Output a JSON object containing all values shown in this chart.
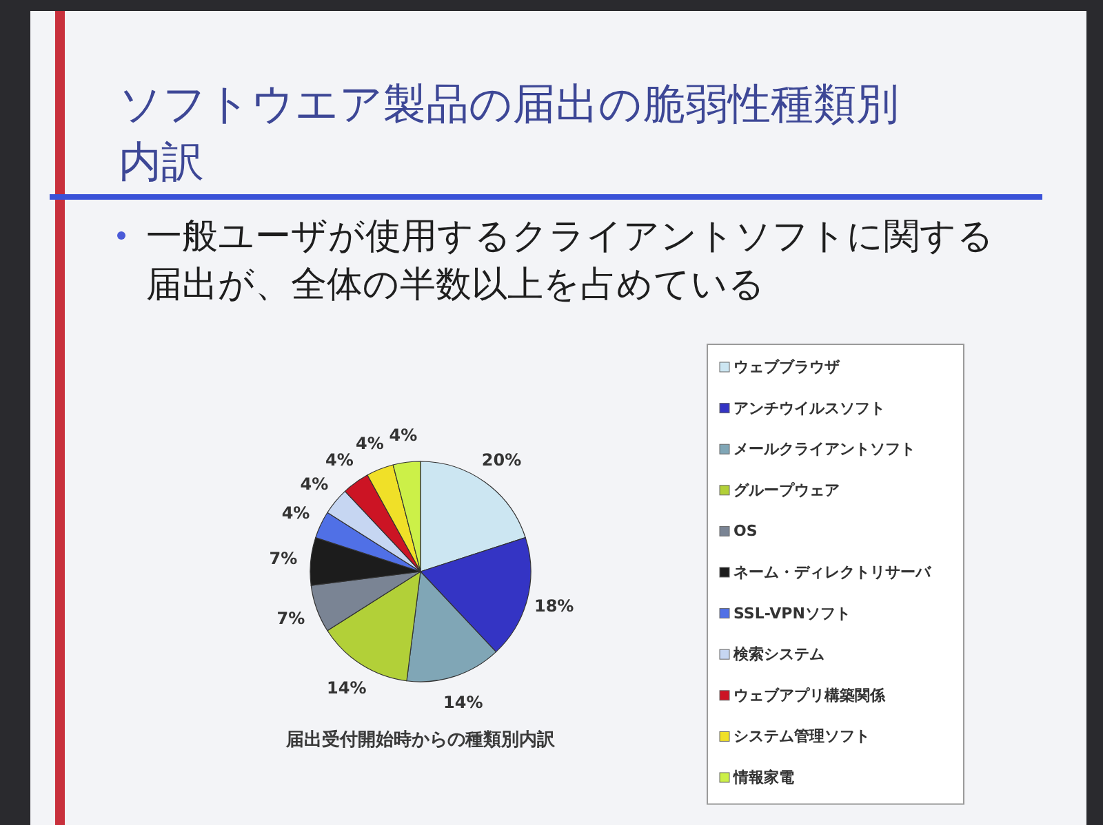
{
  "chart_data": {
    "type": "pie",
    "title": "ソフトウエア製品の届出の脆弱性種類別内訳",
    "subtitle": "一般ユーザが使用するクライアントソフトに関する届出が、全体の半数以上を占めている",
    "categories": [
      "ウェブブラウザ",
      "アンチウイルスソフト",
      "メールクライアントソフト",
      "グループウェア",
      "OS",
      "ネーム・ディレクトリサーバ",
      "SSL-VPNソフト",
      "検索システム",
      "ウェブアプリ構築関係",
      "システム管理ソフト",
      "情報家電"
    ],
    "values": [
      20,
      18,
      14,
      14,
      7,
      7,
      4,
      4,
      4,
      4,
      4
    ],
    "value_labels": [
      "20%",
      "18%",
      "14%",
      "14%",
      "7%",
      "7%",
      "4%",
      "4%",
      "4%",
      "4%",
      "4%"
    ],
    "colors": [
      "#cce6f2",
      "#3434c4",
      "#80a6b6",
      "#b2d038",
      "#7a8494",
      "#1c1c1c",
      "#5070e6",
      "#c6d6f2",
      "#cc1424",
      "#f0e028",
      "#ccf048"
    ],
    "legend": "right",
    "annotations": [
      "届出受付開始時からの種類別内訳"
    ]
  }
}
